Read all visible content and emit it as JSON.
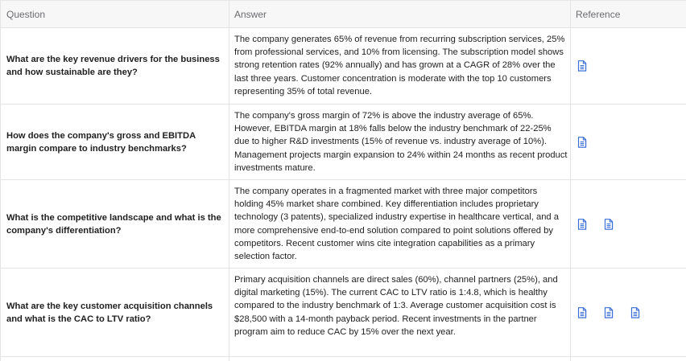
{
  "table": {
    "headers": {
      "question": "Question",
      "answer": "Answer",
      "reference": "Reference"
    },
    "rows": [
      {
        "question": "What are the key revenue drivers for the business and how sustainable are they?",
        "answer": "The company generates 65% of revenue from recurring subscription services, 25% from professional services, and 10% from licensing. The subscription model shows strong retention rates (92% annually) and has grown at a CAGR of 28% over the last three years. Customer concentration is moderate with the top 10 customers representing 35% of total revenue.",
        "references": [
          "document-icon"
        ]
      },
      {
        "question": "How does the company's gross and EBITDA margin compare to industry benchmarks?",
        "answer": "The company's gross margin of 72% is above the industry average of 65%. However, EBITDA margin at 18% falls below the industry benchmark of 22-25% due to higher R&D investments (15% of revenue vs. industry average of 10%). Management projects margin expansion to 24% within 24 months as recent product investments mature.",
        "references": [
          "document-icon"
        ]
      },
      {
        "question": "What is the competitive landscape and what is the company's differentiation?",
        "answer": "The company operates in a fragmented market with three major competitors holding 45% market share combined. Key differentiation includes proprietary technology (3 patents), specialized industry expertise in healthcare vertical, and a more comprehensive end-to-end solution compared to point solutions offered by competitors. Recent customer wins cite integration capabilities as a primary selection factor.",
        "references": [
          "document-icon",
          "document-icon"
        ]
      },
      {
        "question": "What are the key customer acquisition channels and what is the CAC to LTV ratio?",
        "answer": "Primary acquisition channels are direct sales (60%), channel partners (25%), and digital marketing (15%). The current CAC to LTV ratio is 1:4.8, which is healthy compared to the industry benchmark of 1:3. Average customer acquisition cost is $28,500 with a 14-month payback period. Recent investments in the partner program aim to reduce CAC by 15% over the next year.",
        "references": [
          "document-icon",
          "document-icon",
          "document-icon"
        ]
      }
    ]
  },
  "colors": {
    "header_bg": "#f7f7f8",
    "border": "#e4e4e7",
    "icon": "#3b6fd8"
  }
}
